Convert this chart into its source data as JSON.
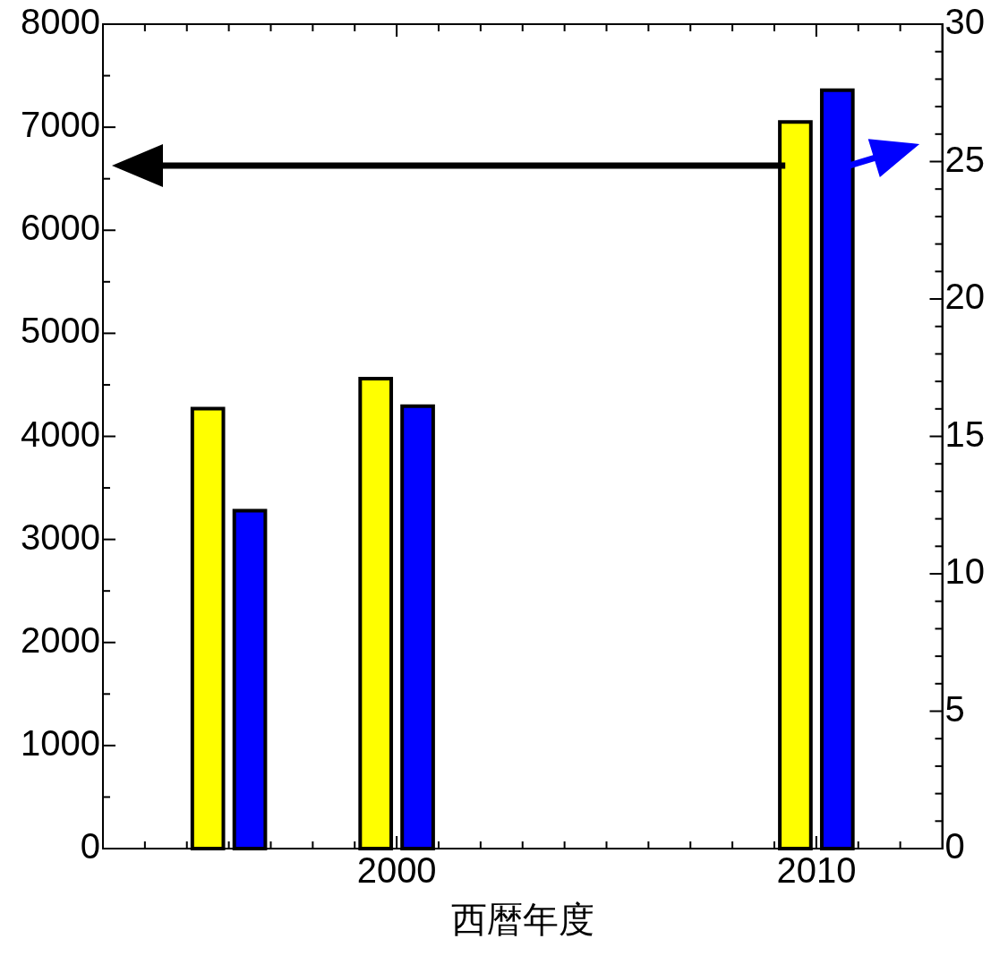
{
  "chart_data": {
    "type": "bar",
    "xlabel": "西暦年度",
    "series": [
      {
        "color": "#ffff00",
        "x": [
          1995.5,
          1999.5,
          2009.5
        ],
        "values": [
          4270,
          4560,
          7050
        ]
      },
      {
        "color": "#0000ff",
        "x": [
          1996.5,
          2000.5,
          2010.5
        ],
        "values": [
          12.3,
          16.1,
          27.6
        ],
        "axis": "y2"
      }
    ],
    "xlim": [
      1993,
      2013
    ],
    "xticks": [
      {
        "value": 1994,
        "label": null
      },
      {
        "value": 1995,
        "label": null
      },
      {
        "value": 1996,
        "label": null
      },
      {
        "value": 1997,
        "label": null
      },
      {
        "value": 1998,
        "label": null
      },
      {
        "value": 1999,
        "label": null
      },
      2000,
      {
        "value": 2001,
        "label": null
      },
      {
        "value": 2002,
        "label": null
      },
      {
        "value": 2003,
        "label": null
      },
      {
        "value": 2004,
        "label": null
      },
      {
        "value": 2005,
        "label": null
      },
      {
        "value": 2006,
        "label": null
      },
      {
        "value": 2007,
        "label": null
      },
      {
        "value": 2008,
        "label": null
      },
      {
        "value": 2009,
        "label": null
      },
      2010,
      {
        "value": 2011,
        "label": null
      },
      {
        "value": 2012,
        "label": null
      }
    ],
    "ylim": [
      0,
      8000
    ],
    "yticks": [
      0,
      {
        "value": 500,
        "label": null
      },
      1000,
      {
        "value": 1500,
        "label": null
      },
      2000,
      {
        "value": 2500,
        "label": null
      },
      3000,
      {
        "value": 3500,
        "label": null
      },
      4000,
      {
        "value": 4500,
        "label": null
      },
      5000,
      {
        "value": 5500,
        "label": null
      },
      6000,
      {
        "value": 6500,
        "label": null
      },
      7000,
      {
        "value": 7500,
        "label": null
      },
      8000
    ],
    "y2lim": [
      0,
      30
    ],
    "y2ticks": [
      0,
      {
        "value": 1,
        "label": null
      },
      {
        "value": 2,
        "label": null
      },
      {
        "value": 3,
        "label": null
      },
      {
        "value": 4,
        "label": null
      },
      5,
      {
        "value": 6,
        "label": null
      },
      {
        "value": 7,
        "label": null
      },
      {
        "value": 8,
        "label": null
      },
      {
        "value": 9,
        "label": null
      },
      10,
      {
        "value": 11,
        "label": null
      },
      {
        "value": 12,
        "label": null
      },
      {
        "value": 13,
        "label": null
      },
      {
        "value": 14,
        "label": null
      },
      15,
      {
        "value": 16,
        "label": null
      },
      {
        "value": 17,
        "label": null
      },
      {
        "value": 18,
        "label": null
      },
      {
        "value": 19,
        "label": null
      },
      20,
      {
        "value": 21,
        "label": null
      },
      {
        "value": 22,
        "label": null
      },
      {
        "value": 23,
        "label": null
      },
      {
        "value": 24,
        "label": null
      },
      25,
      {
        "value": 26,
        "label": null
      },
      {
        "value": 27,
        "label": null
      },
      {
        "value": 28,
        "label": null
      },
      {
        "value": 29,
        "label": null
      },
      30
    ]
  }
}
